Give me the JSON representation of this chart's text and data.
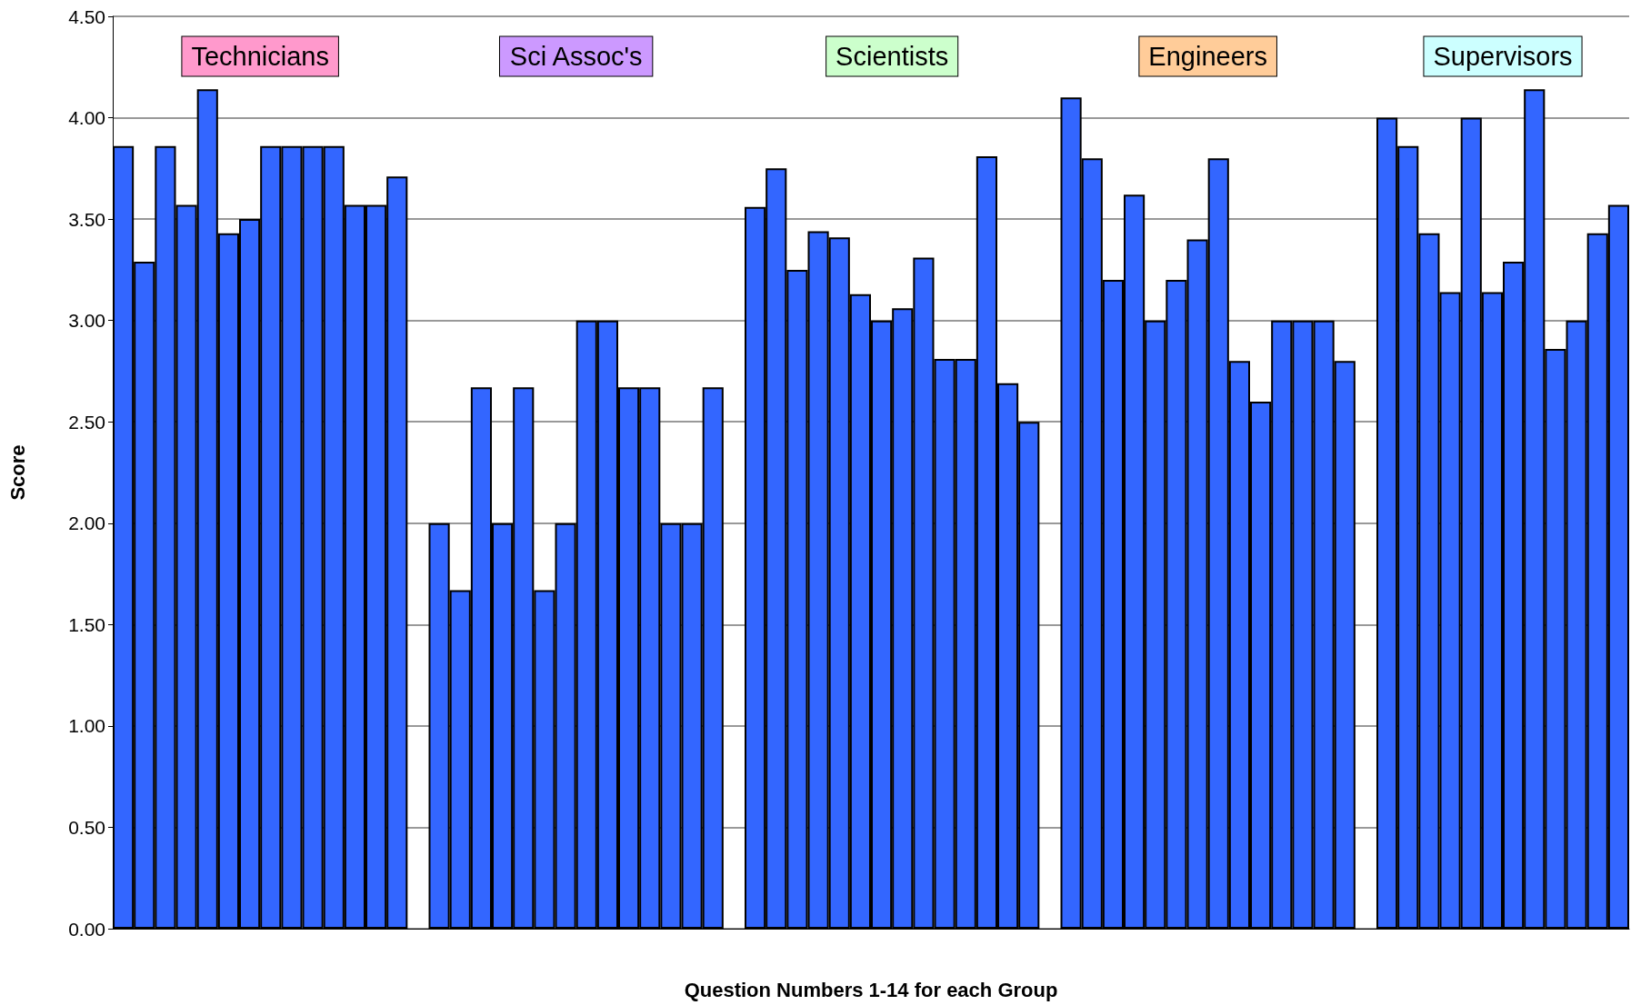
{
  "chart_data": {
    "type": "bar",
    "xlabel": "Question Numbers 1-14 for each Group",
    "ylabel": "Score",
    "categories": [
      null,
      null,
      null,
      null,
      null,
      null,
      null,
      null,
      null,
      null,
      null,
      null,
      null,
      null,
      null,
      null,
      null,
      null,
      null,
      null,
      null,
      null,
      null,
      null,
      null,
      null,
      null,
      null,
      null,
      null,
      null,
      null,
      null,
      null,
      null,
      null,
      null,
      null,
      null,
      null,
      null,
      null,
      null,
      null,
      null,
      null,
      null,
      null,
      null,
      null,
      null,
      null,
      null,
      null,
      null,
      null,
      null,
      null,
      null,
      null,
      null,
      null,
      null,
      null,
      null,
      null,
      null,
      null,
      null,
      null,
      null,
      null
    ],
    "values": [
      3.86,
      3.29,
      3.86,
      3.57,
      4.14,
      3.43,
      3.5,
      3.86,
      3.86,
      3.86,
      3.86,
      3.57,
      3.57,
      3.71,
      null,
      2.0,
      1.67,
      2.67,
      2.0,
      2.67,
      1.67,
      2.0,
      3.0,
      3.0,
      2.67,
      2.67,
      2.0,
      2.0,
      2.67,
      null,
      3.56,
      3.75,
      3.25,
      3.44,
      3.41,
      3.13,
      3.0,
      3.06,
      3.31,
      2.81,
      2.81,
      3.81,
      2.69,
      2.5,
      null,
      4.1,
      3.8,
      3.2,
      3.62,
      3.0,
      3.2,
      3.4,
      3.8,
      2.8,
      2.6,
      3.0,
      3.0,
      3.0,
      2.8,
      null,
      4.0,
      3.86,
      3.43,
      3.14,
      4.0,
      3.14,
      3.29,
      4.14,
      2.86,
      3.0,
      3.43,
      3.57
    ],
    "color": "#3366ff",
    "ylim": [
      0,
      4.5
    ],
    "yticks": [
      {
        "value": 0,
        "label": "0.00"
      },
      {
        "value": 0.5,
        "label": "0.50"
      },
      {
        "value": 1,
        "label": "1.00"
      },
      {
        "value": 1.5,
        "label": "1.50"
      },
      {
        "value": 2,
        "label": "2.00"
      },
      {
        "value": 2.5,
        "label": "2.50"
      },
      {
        "value": 3,
        "label": "3.00"
      },
      {
        "value": 3.5,
        "label": "3.50"
      },
      {
        "value": 4,
        "label": "4.00"
      },
      {
        "value": 4.5,
        "label": "4.50"
      }
    ],
    "grid": "y",
    "annotations": [
      "Technicians",
      "Sci Assoc's",
      "Scientists",
      "Engineers",
      "Supervisors"
    ]
  }
}
